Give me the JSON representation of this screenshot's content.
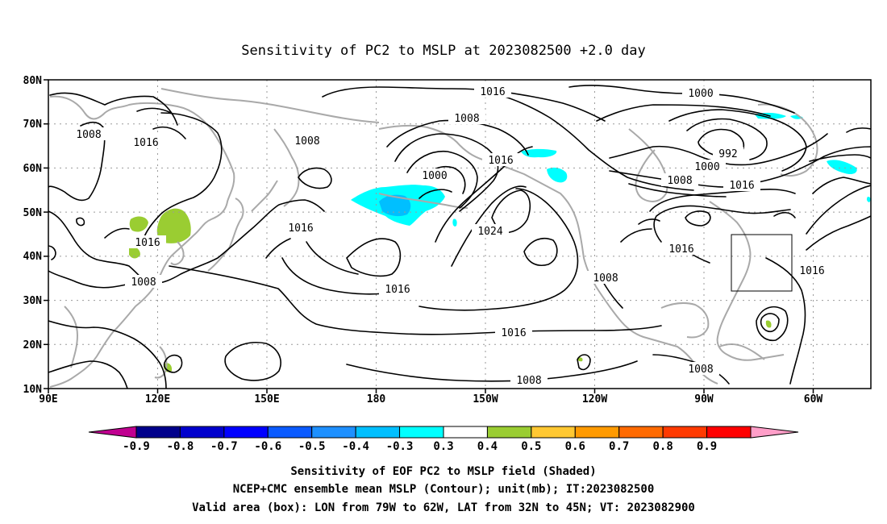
{
  "title": "Sensitivity of PC2 to MSLP at 2023082500 +2.0 day",
  "map": {
    "lat_ticks": [
      "80N",
      "70N",
      "60N",
      "50N",
      "40N",
      "30N",
      "20N",
      "10N"
    ],
    "lon_ticks": [
      "90E",
      "120E",
      "150E",
      "180",
      "150W",
      "120W",
      "90W",
      "60W"
    ],
    "grid": true,
    "coastline_color": "#a9a9a9",
    "contour_color": "#000000",
    "contour_labels": [
      "1016",
      "1008",
      "1008",
      "1008",
      "1016",
      "1016",
      "1000",
      "1016",
      "1008",
      "1000",
      "992",
      "1000",
      "1008",
      "1016",
      "1016",
      "1016",
      "1024",
      "1016",
      "1016",
      "1008",
      "1008",
      "1016",
      "1008",
      "1016",
      "1008"
    ],
    "valid_box": {
      "lon": [
        "79W",
        "62W"
      ],
      "lat": [
        "32N",
        "45N"
      ]
    }
  },
  "colorbar": {
    "labels": [
      "-0.9",
      "-0.8",
      "-0.7",
      "-0.6",
      "-0.5",
      "-0.4",
      "-0.3",
      "0.3",
      "0.4",
      "0.5",
      "0.6",
      "0.7",
      "0.8",
      "0.9"
    ],
    "colors": [
      "#00008b",
      "#0000cd",
      "#0000ff",
      "#0a5aff",
      "#1e90ff",
      "#00bfff",
      "#00ffff",
      "#ffffff",
      "#9acd32",
      "#ffc832",
      "#ff9a00",
      "#ff6a00",
      "#ff3a00",
      "#ff0000"
    ],
    "low_end_color": "#c00090",
    "high_end_color": "#ff9ec8"
  },
  "captions": [
    "Sensitivity of EOF PC2 to MSLP field (Shaded)",
    "NCEP+CMC ensemble mean MSLP (Contour); unit(mb); IT:2023082500",
    "Valid area (box): LON from 79W to 62W, LAT from 32N to 45N; VT: 2023082900"
  ]
}
